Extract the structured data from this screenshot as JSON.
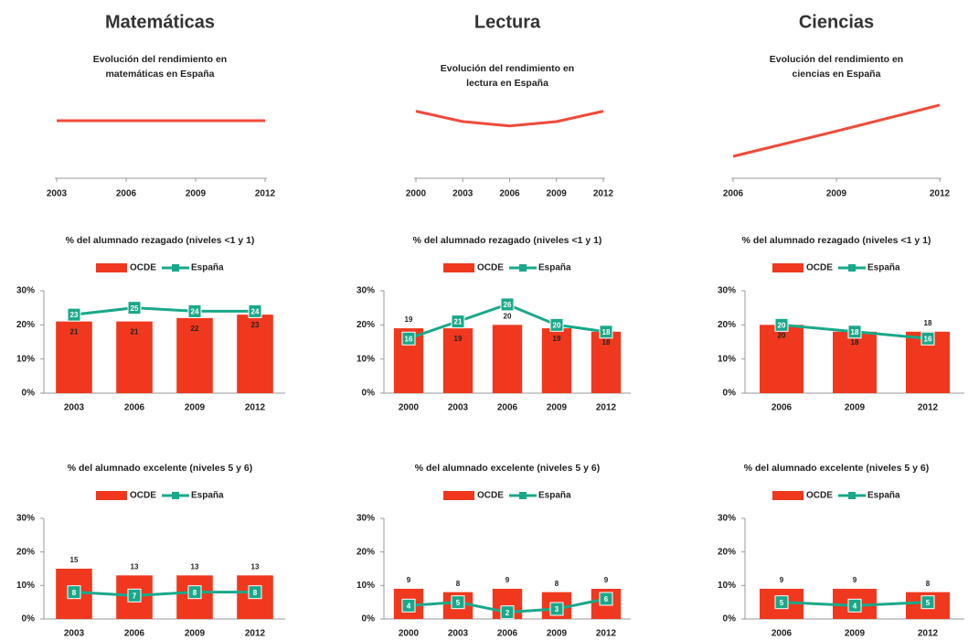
{
  "headings": [
    "Matemáticas",
    "Lectura",
    "Ciencias"
  ],
  "chart_data": [
    {
      "type": "trend",
      "title": [
        "Evolución del rendimiento en",
        "matemáticas en España"
      ],
      "categories": [
        "2003",
        "2006",
        "2009",
        "2012"
      ],
      "values": [
        6.1,
        6.1,
        6.1,
        6.1
      ],
      "color": "#f04a3a",
      "ylim": [
        0,
        10
      ]
    },
    {
      "type": "trend",
      "title": [
        "Evolución del rendimiento en",
        "lectura en España"
      ],
      "categories": [
        "2000",
        "2003",
        "2006",
        "2009",
        "2012"
      ],
      "values": [
        7.2,
        6.0,
        5.5,
        6.0,
        7.2
      ],
      "color": "#f04a3a",
      "ylim": [
        0,
        10
      ]
    },
    {
      "type": "trend",
      "title": [
        "Evolución del rendimiento en",
        "ciencias en España"
      ],
      "categories": [
        "2006",
        "2009",
        "2012"
      ],
      "values": [
        2.0,
        4.9,
        7.9
      ],
      "color": "#f04a3a",
      "ylim": [
        0,
        10
      ]
    },
    {
      "type": "combo",
      "title": "% del alumnado rezagado (niveles <1 y 1)",
      "categories": [
        "2003",
        "2006",
        "2009",
        "2012"
      ],
      "series": [
        {
          "name": "OCDE",
          "color": "#f0381e",
          "values": [
            21,
            21,
            22,
            23
          ]
        },
        {
          "name": "España",
          "color": "#1aa88a",
          "values": [
            23,
            25,
            24,
            24
          ]
        }
      ],
      "ylim": [
        0,
        30
      ],
      "yticks": [
        {
          "value": 0,
          "label": "0%"
        },
        {
          "value": 10,
          "label": "10%"
        },
        {
          "value": 20,
          "label": "20%"
        },
        {
          "value": 30,
          "label": "30%"
        }
      ]
    },
    {
      "type": "combo",
      "title": "% del alumnado rezagado (niveles <1 y 1)",
      "categories": [
        "2000",
        "2003",
        "2006",
        "2009",
        "2012"
      ],
      "series": [
        {
          "name": "OCDE",
          "color": "#f0381e",
          "values": [
            19,
            19,
            20,
            19,
            18
          ]
        },
        {
          "name": "España",
          "color": "#1aa88a",
          "values": [
            16,
            21,
            26,
            20,
            18
          ]
        }
      ],
      "ylim": [
        0,
        30
      ],
      "yticks": [
        {
          "value": 0,
          "label": "0%"
        },
        {
          "value": 10,
          "label": "10%"
        },
        {
          "value": 20,
          "label": "20%"
        },
        {
          "value": 30,
          "label": "30%"
        }
      ]
    },
    {
      "type": "combo",
      "title": "% del alumnado rezagado (niveles <1 y 1)",
      "categories": [
        "2006",
        "2009",
        "2012"
      ],
      "series": [
        {
          "name": "OCDE",
          "color": "#f0381e",
          "values": [
            20,
            18,
            18
          ]
        },
        {
          "name": "España",
          "color": "#1aa88a",
          "values": [
            20,
            18,
            16
          ]
        }
      ],
      "ylim": [
        0,
        30
      ],
      "yticks": [
        {
          "value": 0,
          "label": "0%"
        },
        {
          "value": 10,
          "label": "10%"
        },
        {
          "value": 20,
          "label": "20%"
        },
        {
          "value": 30,
          "label": "30%"
        }
      ]
    },
    {
      "type": "combo",
      "title": "% del alumnado excelente (niveles 5 y 6)",
      "categories": [
        "2003",
        "2006",
        "2009",
        "2012"
      ],
      "series": [
        {
          "name": "OCDE",
          "color": "#f0381e",
          "values": [
            15,
            13,
            13,
            13
          ]
        },
        {
          "name": "España",
          "color": "#1aa88a",
          "values": [
            8,
            7,
            8,
            8
          ]
        }
      ],
      "ylim": [
        0,
        30
      ],
      "yticks": [
        {
          "value": 0,
          "label": "0%"
        },
        {
          "value": 10,
          "label": "10%"
        },
        {
          "value": 20,
          "label": "20%"
        },
        {
          "value": 30,
          "label": "30%"
        }
      ]
    },
    {
      "type": "combo",
      "title": "% del alumnado excelente (niveles 5 y 6)",
      "categories": [
        "2000",
        "2003",
        "2006",
        "2009",
        "2012"
      ],
      "series": [
        {
          "name": "OCDE",
          "color": "#f0381e",
          "values": [
            9,
            8,
            9,
            8,
            9
          ]
        },
        {
          "name": "España",
          "color": "#1aa88a",
          "values": [
            4,
            5,
            2,
            3,
            6
          ]
        }
      ],
      "ylim": [
        0,
        30
      ],
      "yticks": [
        {
          "value": 0,
          "label": "0%"
        },
        {
          "value": 10,
          "label": "10%"
        },
        {
          "value": 20,
          "label": "20%"
        },
        {
          "value": 30,
          "label": "30%"
        }
      ]
    },
    {
      "type": "combo",
      "title": "% del alumnado excelente (niveles 5 y 6)",
      "categories": [
        "2006",
        "2009",
        "2012"
      ],
      "series": [
        {
          "name": "OCDE",
          "color": "#f0381e",
          "values": [
            9,
            9,
            8
          ]
        },
        {
          "name": "España",
          "color": "#1aa88a",
          "values": [
            5,
            4,
            5
          ]
        }
      ],
      "ylim": [
        0,
        30
      ],
      "yticks": [
        {
          "value": 0,
          "label": "0%"
        },
        {
          "value": 10,
          "label": "10%"
        },
        {
          "value": 20,
          "label": "20%"
        },
        {
          "value": 30,
          "label": "30%"
        }
      ]
    }
  ]
}
